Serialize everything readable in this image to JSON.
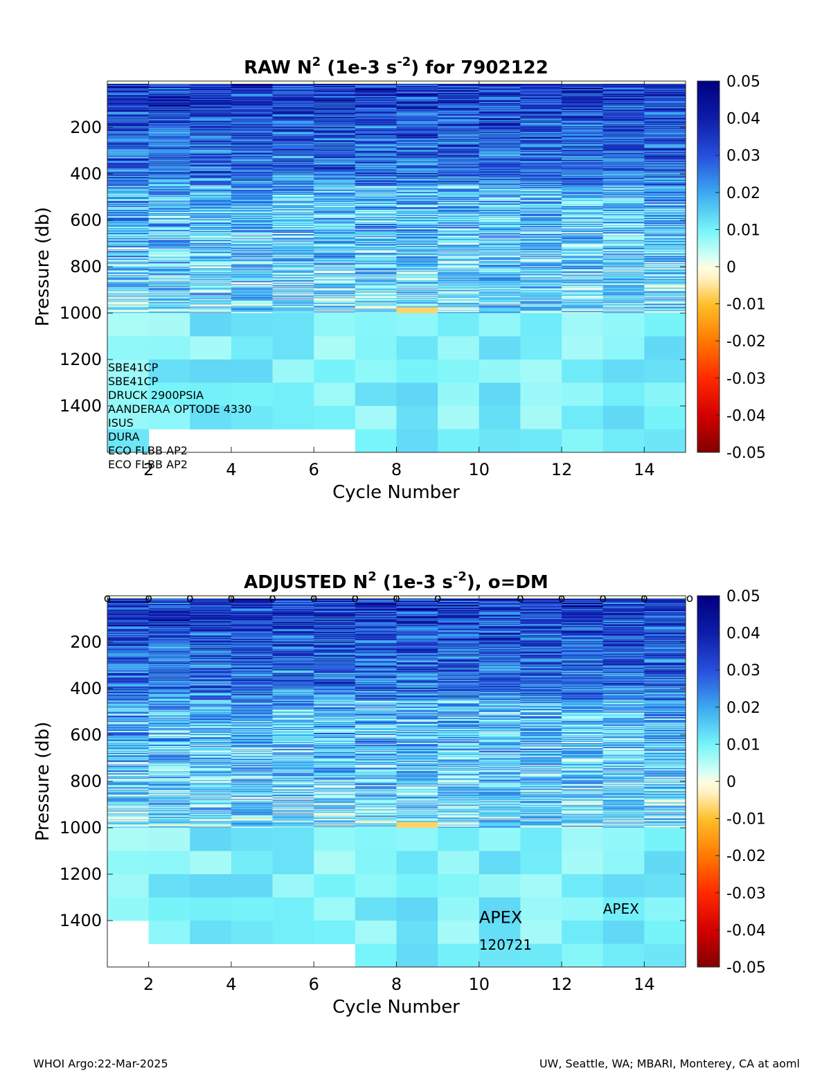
{
  "chart_data": [
    {
      "type": "heatmap",
      "title_main": "RAW N",
      "title_sup1": "2",
      "title_mid": " (1e-3 s",
      "title_sup2": "-2",
      "title_end": ") for 7902122",
      "xlabel": "Cycle Number",
      "ylabel": "Pressure (db)",
      "x_ticks": [
        "2",
        "4",
        "6",
        "8",
        "10",
        "12",
        "14"
      ],
      "y_ticks": [
        "200",
        "400",
        "600",
        "800",
        "1000",
        "1200",
        "1400"
      ],
      "xlim": [
        1,
        15
      ],
      "ylim": [
        1600,
        0
      ],
      "colorbar": {
        "min": -0.05,
        "max": 0.05,
        "ticks": [
          "0.05",
          "0.04",
          "0.03",
          "0.02",
          "0.01",
          "0",
          "-0.01",
          "-0.02",
          "-0.03",
          "-0.04",
          "-0.05"
        ]
      },
      "cycles": [
        1,
        2,
        3,
        4,
        5,
        6,
        7,
        8,
        9,
        10,
        11,
        12,
        13,
        14
      ],
      "max_pressure": [
        1600,
        1500,
        1500,
        1500,
        1500,
        1500,
        1600,
        1600,
        1600,
        1600,
        1600,
        1600,
        1600,
        1600
      ],
      "sensor_labels": [
        "SBE41CP",
        "SBE41CP",
        "DRUCK 2900PSIA",
        "AANDERAA OPTODE 4330",
        "ISUS",
        "DURA",
        "ECO FLBB AP2",
        "ECO FLBB AP2"
      ],
      "dm_markers": []
    },
    {
      "type": "heatmap",
      "title_main": "ADJUSTED N",
      "title_sup1": "2",
      "title_mid": " (1e-3 s",
      "title_sup2": "-2",
      "title_end": "), o=DM",
      "xlabel": "Cycle Number",
      "ylabel": "Pressure (db)",
      "x_ticks": [
        "2",
        "4",
        "6",
        "8",
        "10",
        "12",
        "14"
      ],
      "y_ticks": [
        "200",
        "400",
        "600",
        "800",
        "1000",
        "1200",
        "1400"
      ],
      "xlim": [
        1,
        15
      ],
      "ylim": [
        1600,
        0
      ],
      "colorbar": {
        "min": -0.05,
        "max": 0.05,
        "ticks": [
          "0.05",
          "0.04",
          "0.03",
          "0.02",
          "0.01",
          "0",
          "-0.01",
          "-0.02",
          "-0.03",
          "-0.04",
          "-0.05"
        ]
      },
      "cycles": [
        1,
        2,
        3,
        4,
        5,
        6,
        7,
        8,
        9,
        10,
        11,
        12,
        13,
        14
      ],
      "max_pressure": [
        1400,
        1500,
        1500,
        1500,
        1500,
        1500,
        1600,
        1600,
        1600,
        1600,
        1600,
        1600,
        1600,
        1600
      ],
      "dm_markers": [
        1,
        2,
        3,
        4,
        5,
        6,
        7,
        8,
        9,
        11,
        12,
        13,
        14,
        15
      ],
      "dm_marker_glyph": "o",
      "annotations": [
        {
          "text": "APEX",
          "x": 10,
          "y": 1410,
          "size": "large"
        },
        {
          "text": "120721",
          "x": 10,
          "y": 1525,
          "size": "small"
        },
        {
          "text": "APEX",
          "x": 13,
          "y": 1370,
          "size": "small"
        }
      ]
    }
  ],
  "footer": {
    "left": "WHOI Argo:22-Mar-2025",
    "right": "UW, Seattle, WA; MBARI, Monterey, CA at aoml"
  },
  "colors": {
    "deep_blue": "#000080",
    "mid_blue": "#1f3fd8",
    "light_cyan": "#9ff5f5",
    "zero": "#fffde0",
    "negative": "#800000"
  }
}
